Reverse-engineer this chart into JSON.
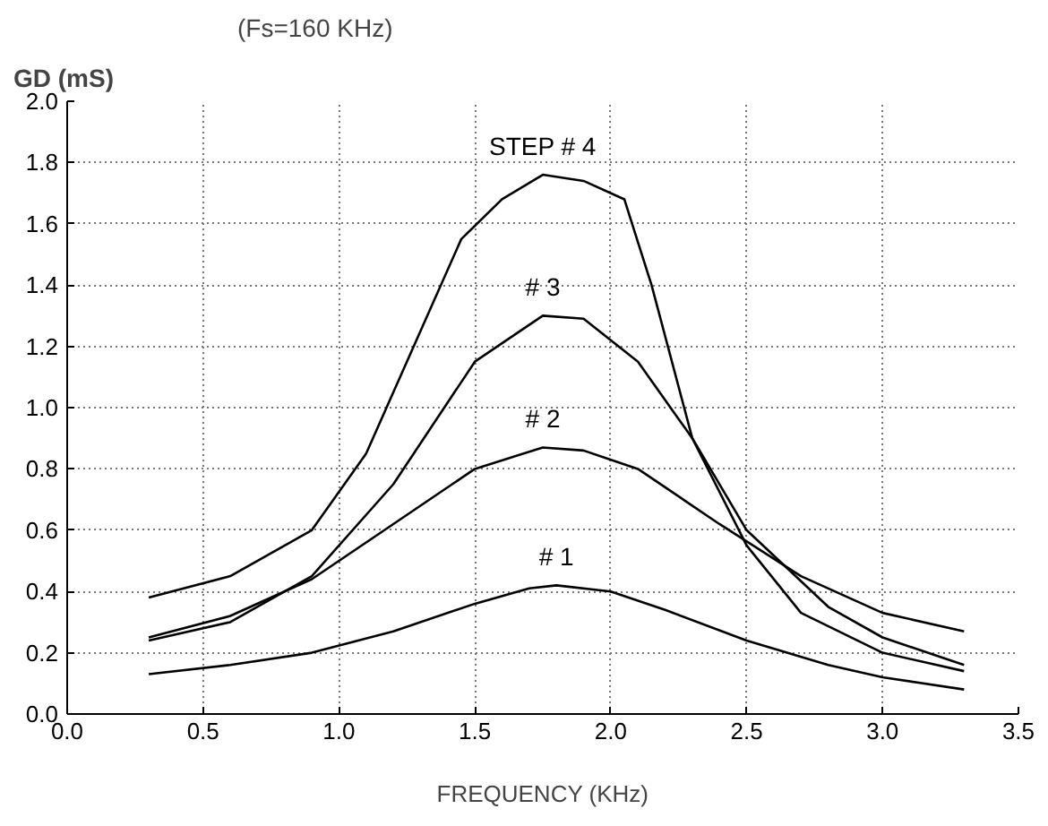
{
  "chart_data": {
    "type": "line",
    "title": "(Fs=160 KHz)",
    "ylabel": "GD (mS)",
    "xlabel": "FREQUENCY (KHz)",
    "xlim": [
      0,
      3.5
    ],
    "ylim": [
      0,
      2.0
    ],
    "xticks": [
      {
        "value": 0,
        "label": "0.0"
      },
      0.5,
      {
        "value": 1,
        "label": "1.0"
      },
      1.5,
      {
        "value": 2,
        "label": "2.0"
      },
      2.5,
      {
        "value": 3,
        "label": "3.0"
      },
      3.5
    ],
    "yticks": [
      {
        "value": 0,
        "label": "0.0"
      },
      0.2,
      0.4,
      0.6,
      0.8,
      {
        "value": 1,
        "label": "1.0"
      },
      1.2,
      1.4,
      1.6,
      1.8,
      {
        "value": 2,
        "label": "2.0"
      }
    ],
    "grid": true,
    "line_style": "solid",
    "marker": "none",
    "series": [
      {
        "name": "# 1",
        "color": "#000000",
        "x": [
          0.3,
          0.6,
          0.9,
          1.2,
          1.5,
          1.7,
          1.8,
          2.0,
          2.2,
          2.5,
          2.8,
          3.0,
          3.3
        ],
        "values": [
          0.13,
          0.16,
          0.2,
          0.27,
          0.36,
          0.41,
          0.42,
          0.4,
          0.34,
          0.24,
          0.16,
          0.12,
          0.08
        ]
      },
      {
        "name": "# 2",
        "color": "#000000",
        "x": [
          0.3,
          0.6,
          0.9,
          1.2,
          1.5,
          1.75,
          1.9,
          2.1,
          2.4,
          2.7,
          3.0,
          3.3
        ],
        "values": [
          0.25,
          0.32,
          0.44,
          0.62,
          0.8,
          0.87,
          0.86,
          0.8,
          0.62,
          0.45,
          0.33,
          0.27
        ]
      },
      {
        "name": "# 3",
        "color": "#000000",
        "x": [
          0.3,
          0.6,
          0.9,
          1.2,
          1.5,
          1.75,
          1.9,
          2.1,
          2.3,
          2.5,
          2.8,
          3.0,
          3.3
        ],
        "values": [
          0.24,
          0.3,
          0.45,
          0.75,
          1.15,
          1.3,
          1.29,
          1.15,
          0.9,
          0.6,
          0.35,
          0.25,
          0.16
        ]
      },
      {
        "name": "STEP # 4",
        "color": "#000000",
        "x": [
          0.3,
          0.6,
          0.9,
          1.1,
          1.3,
          1.45,
          1.6,
          1.75,
          1.9,
          2.05,
          2.15,
          2.3,
          2.5,
          2.7,
          3.0,
          3.3
        ],
        "values": [
          0.38,
          0.45,
          0.6,
          0.85,
          1.25,
          1.55,
          1.68,
          1.76,
          1.74,
          1.68,
          1.4,
          0.9,
          0.55,
          0.33,
          0.2,
          0.14
        ]
      }
    ]
  }
}
